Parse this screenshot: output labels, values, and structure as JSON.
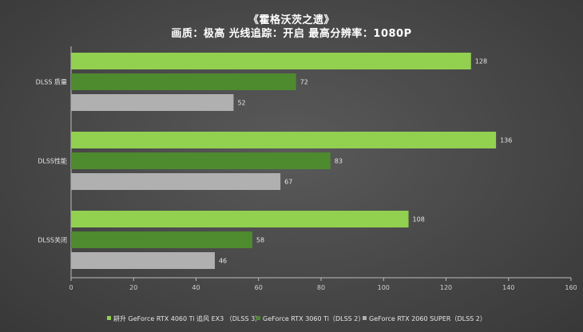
{
  "chart_data": {
    "type": "bar",
    "orientation": "horizontal",
    "title": "《霍格沃茨之遗》",
    "subtitle": "画质：极高  光线追踪：开启  最高分辨率：1080P",
    "categories": [
      "DLSS 质量",
      "DLSS性能",
      "DLSS关闭"
    ],
    "series": [
      {
        "name": "耕升 GeForce RTX 4060 Ti 追风 EX3 （DLSS 3）",
        "color": "#92d050",
        "values": [
          128,
          136,
          108
        ]
      },
      {
        "name": "GeForce RTX 3060 Ti（DLSS 2）",
        "color": "#4e8a2e",
        "values": [
          72,
          83,
          58
        ]
      },
      {
        "name": "GeForce RTX 2060 SUPER（DLSS 2）",
        "color": "#b0b0b0",
        "values": [
          52,
          67,
          46
        ]
      }
    ],
    "xlim": [
      0,
      160
    ],
    "xticks": [
      0,
      20,
      40,
      60,
      80,
      100,
      120,
      140,
      160
    ],
    "grid": false,
    "legend_position": "bottom"
  }
}
